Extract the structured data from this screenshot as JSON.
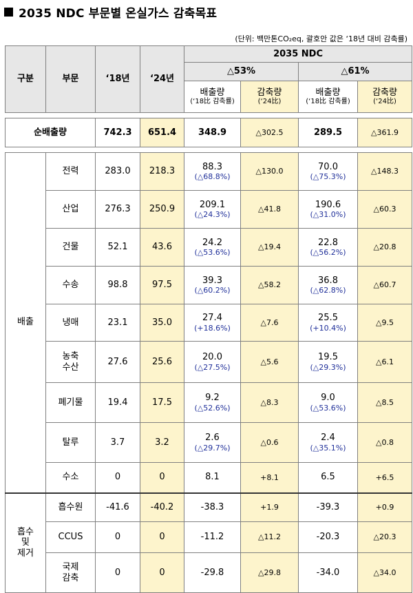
{
  "title": "2035 NDC 부문별 온실가스 감축목표",
  "unit_note": "(단위: 백만톤CO₂eq, 괄호안 값은 ‘18년 대비 감축률)",
  "header": {
    "category": "구분",
    "sector": "부문",
    "y18": "‘18년",
    "y24": "‘24년",
    "ndc": "2035 NDC",
    "scenario_a": "△53%",
    "scenario_b": "△61%",
    "emission": "배출량",
    "emission_sub": "(‘18比 감축률)",
    "reduction": "감축량",
    "reduction_sub": "(‘24比)"
  },
  "net": {
    "label": "순배출량",
    "y18": "742.3",
    "y24": "651.4",
    "a_em": "348.9",
    "a_red": "△302.5",
    "b_em": "289.5",
    "b_red": "△361.9"
  },
  "emission_group": "배출",
  "emission_rows": [
    {
      "sector": "전력",
      "y18": "283.0",
      "y24": "218.3",
      "a_em": "88.3",
      "a_rate": "(△68.8%)",
      "a_red": "△130.0",
      "b_em": "70.0",
      "b_rate": "(△75.3%)",
      "b_red": "△148.3"
    },
    {
      "sector": "산업",
      "y18": "276.3",
      "y24": "250.9",
      "a_em": "209.1",
      "a_rate": "(△24.3%)",
      "a_red": "△41.8",
      "b_em": "190.6",
      "b_rate": "(△31.0%)",
      "b_red": "△60.3"
    },
    {
      "sector": "건물",
      "y18": "52.1",
      "y24": "43.6",
      "a_em": "24.2",
      "a_rate": "(△53.6%)",
      "a_red": "△19.4",
      "b_em": "22.8",
      "b_rate": "(△56.2%)",
      "b_red": "△20.8"
    },
    {
      "sector": "수송",
      "y18": "98.8",
      "y24": "97.5",
      "a_em": "39.3",
      "a_rate": "(△60.2%)",
      "a_red": "△58.2",
      "b_em": "36.8",
      "b_rate": "(△62.8%)",
      "b_red": "△60.7"
    },
    {
      "sector": "냉매",
      "y18": "23.1",
      "y24": "35.0",
      "a_em": "27.4",
      "a_rate": "(+18.6%)",
      "a_red": "△7.6",
      "b_em": "25.5",
      "b_rate": "(+10.4%)",
      "b_red": "△9.5"
    },
    {
      "sector": "농축\n수산",
      "y18": "27.6",
      "y24": "25.6",
      "a_em": "20.0",
      "a_rate": "(△27.5%)",
      "a_red": "△5.6",
      "b_em": "19.5",
      "b_rate": "(△29.3%)",
      "b_red": "△6.1"
    },
    {
      "sector": "폐기물",
      "y18": "19.4",
      "y24": "17.5",
      "a_em": "9.2",
      "a_rate": "(△52.6%)",
      "a_red": "△8.3",
      "b_em": "9.0",
      "b_rate": "(△53.6%)",
      "b_red": "△8.5"
    },
    {
      "sector": "탈루",
      "y18": "3.7",
      "y24": "3.2",
      "a_em": "2.6",
      "a_rate": "(△29.7%)",
      "a_red": "△0.6",
      "b_em": "2.4",
      "b_rate": "(△35.1%)",
      "b_red": "△0.8"
    },
    {
      "sector": "수소",
      "y18": "0",
      "y24": "0",
      "a_em": "8.1",
      "a_rate": "",
      "a_red": "+8.1",
      "b_em": "6.5",
      "b_rate": "",
      "b_red": "+6.5"
    }
  ],
  "absorb_group": "흡수\n및\n제거",
  "absorb_rows": [
    {
      "sector": "흡수원",
      "y18": "-41.6",
      "y24": "-40.2",
      "a_em": "-38.3",
      "a_red": "+1.9",
      "b_em": "-39.3",
      "b_red": "+0.9"
    },
    {
      "sector": "CCUS",
      "y18": "0",
      "y24": "0",
      "a_em": "-11.2",
      "a_red": "△11.2",
      "b_em": "-20.3",
      "b_red": "△20.3"
    },
    {
      "sector": "국제\n감축",
      "y18": "0",
      "y24": "0",
      "a_em": "-29.8",
      "a_red": "△29.8",
      "b_em": "-34.0",
      "b_red": "△34.0"
    }
  ]
}
